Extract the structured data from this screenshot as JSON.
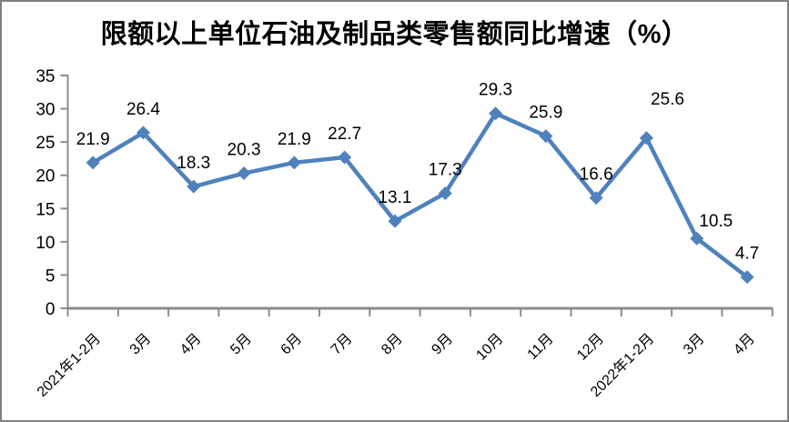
{
  "window": {
    "background_color": "#ffffff",
    "frame_border_color": "#808080"
  },
  "chart_data": {
    "type": "line",
    "title": "限额以上单位石油及制品类零售额同比增速（%）",
    "categories": [
      "2021年1-2月",
      "3月",
      "4月",
      "5月",
      "6月",
      "7月",
      "8月",
      "9月",
      "10月",
      "11月",
      "12月",
      "2022年1-2月",
      "3月",
      "4月"
    ],
    "series": [
      {
        "values": [
          21.9,
          26.4,
          18.3,
          20.3,
          21.9,
          22.7,
          13.1,
          17.3,
          29.3,
          25.9,
          16.6,
          25.6,
          10.5,
          4.7
        ],
        "data_labels": [
          "21.9",
          "26.4",
          "18.3",
          "20.3",
          "21.9",
          "22.7",
          "13.1",
          "17.3",
          "29.3",
          "25.9",
          "16.6",
          "25.6",
          "10.5",
          "4.7"
        ]
      }
    ],
    "xlabel": "",
    "ylabel": "",
    "ylim": [
      0,
      35
    ],
    "y_ticks": [
      0,
      5,
      10,
      15,
      20,
      25,
      30,
      35
    ],
    "grid": "off",
    "legend": "none",
    "marker_shape": "diamond",
    "x_label_rotation_deg": 45,
    "line_color": "#4F81BD",
    "marker_color": "#4F81BD",
    "axis_color": "#8C8C8C",
    "text_color": "#000000",
    "default_label_offset": [
      0,
      -27
    ],
    "label_offsets": {
      "11": [
        23,
        -44
      ],
      "12": [
        21,
        -20
      ]
    }
  }
}
